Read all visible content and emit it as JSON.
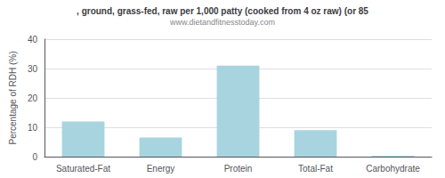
{
  "chart_data": {
    "type": "bar",
    "title": ", ground, grass-fed, raw per 1,000 patty (cooked from 4 oz raw) (or 85",
    "subtitle": "www.dietandfitnesstoday.com",
    "categories": [
      "Saturated-Fat",
      "Energy",
      "Protein",
      "Total-Fat",
      "Carbohydrate"
    ],
    "values": [
      12,
      6.5,
      31,
      9,
      0.3
    ],
    "color": "#a8d4e0",
    "ylabel": "Percentage of RDH (%)",
    "ylim": [
      0,
      40
    ],
    "yticks": [
      0,
      10,
      20,
      30,
      40
    ],
    "grid": true
  }
}
